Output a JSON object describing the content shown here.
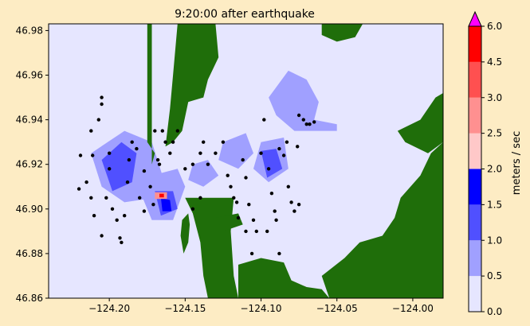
{
  "chart_data": {
    "type": "heatmap",
    "title": "9:20:00 after earthquake",
    "xlabel": "",
    "ylabel": "",
    "xlim": [
      -124.24,
      -123.98
    ],
    "ylim": [
      46.86,
      46.983
    ],
    "x_ticks": [
      -124.2,
      -124.15,
      -124.1,
      -124.05,
      -124.0
    ],
    "x_tick_labels": [
      "−124.20",
      "−124.15",
      "−124.10",
      "−124.05",
      "−124.00"
    ],
    "y_ticks": [
      46.86,
      46.88,
      46.9,
      46.92,
      46.94,
      46.96,
      46.98
    ],
    "y_tick_labels": [
      "46.86",
      "46.88",
      "46.90",
      "46.92",
      "46.94",
      "46.96",
      "46.98"
    ],
    "colorbar": {
      "label": "meters / sec",
      "levels": [
        0.0,
        0.5,
        1.0,
        1.5,
        2.0,
        2.5,
        3.0,
        4.5,
        6.0
      ],
      "level_labels": [
        "0.0",
        "0.5",
        "1.0",
        "1.5",
        "2.0",
        "2.5",
        "3.0",
        "4.5",
        "6.0"
      ],
      "colors": [
        "#e6e6ff",
        "#a0a0ff",
        "#5050ff",
        "#0000ff",
        "#ffc8c8",
        "#ff9090",
        "#ff5050",
        "#ff0000"
      ],
      "extend_max_color": "#ff00ff"
    },
    "land_color": "#1f6e0a",
    "speed_regions": [
      {
        "level": 1,
        "polygon": [
          [
            -124.095,
            46.95
          ],
          [
            -124.082,
            46.962
          ],
          [
            -124.07,
            46.958
          ],
          [
            -124.062,
            46.948
          ],
          [
            -124.065,
            46.94
          ],
          [
            -124.05,
            46.938
          ],
          [
            -124.05,
            46.935
          ],
          [
            -124.078,
            46.935
          ],
          [
            -124.09,
            46.942
          ]
        ]
      },
      {
        "level": 1,
        "polygon": [
          [
            -124.212,
            46.925
          ],
          [
            -124.19,
            46.935
          ],
          [
            -124.172,
            46.93
          ],
          [
            -124.165,
            46.915
          ],
          [
            -124.17,
            46.905
          ],
          [
            -124.19,
            46.903
          ],
          [
            -124.205,
            46.91
          ]
        ]
      },
      {
        "level": 1,
        "polygon": [
          [
            -124.172,
            46.915
          ],
          [
            -124.155,
            46.918
          ],
          [
            -124.15,
            46.91
          ],
          [
            -124.158,
            46.895
          ],
          [
            -124.172,
            46.895
          ],
          [
            -124.178,
            46.905
          ]
        ]
      },
      {
        "level": 1,
        "polygon": [
          [
            -124.1,
            46.93
          ],
          [
            -124.085,
            46.932
          ],
          [
            -124.082,
            46.918
          ],
          [
            -124.095,
            46.912
          ],
          [
            -124.105,
            46.918
          ]
        ]
      },
      {
        "level": 1,
        "polygon": [
          [
            -124.125,
            46.93
          ],
          [
            -124.11,
            46.934
          ],
          [
            -124.105,
            46.925
          ],
          [
            -124.115,
            46.918
          ],
          [
            -124.128,
            46.922
          ]
        ]
      },
      {
        "level": 1,
        "polygon": [
          [
            -124.145,
            46.92
          ],
          [
            -124.135,
            46.922
          ],
          [
            -124.128,
            46.915
          ],
          [
            -124.138,
            46.91
          ],
          [
            -124.148,
            46.913
          ]
        ]
      },
      {
        "level": 2,
        "polygon": [
          [
            -124.205,
            46.922
          ],
          [
            -124.192,
            46.93
          ],
          [
            -124.182,
            46.925
          ],
          [
            -124.185,
            46.912
          ],
          [
            -124.198,
            46.908
          ]
        ]
      },
      {
        "level": 2,
        "polygon": [
          [
            -124.1,
            46.926
          ],
          [
            -124.09,
            46.927
          ],
          [
            -124.086,
            46.918
          ],
          [
            -124.096,
            46.914
          ]
        ]
      },
      {
        "level": 2,
        "polygon": [
          [
            -124.17,
            46.908
          ],
          [
            -124.158,
            46.908
          ],
          [
            -124.155,
            46.9
          ],
          [
            -124.166,
            46.897
          ]
        ]
      },
      {
        "level": 3,
        "polygon": [
          [
            -124.166,
            46.905
          ],
          [
            -124.16,
            46.904
          ],
          [
            -124.159,
            46.899
          ],
          [
            -124.165,
            46.899
          ]
        ]
      },
      {
        "level": 5,
        "polygon": [
          [
            -124.17,
            46.9075
          ],
          [
            -124.162,
            46.9075
          ],
          [
            -124.162,
            46.9045
          ],
          [
            -124.17,
            46.9045
          ]
        ]
      },
      {
        "level": 7,
        "polygon": [
          [
            -124.167,
            46.9068
          ],
          [
            -124.164,
            46.9068
          ],
          [
            -124.164,
            46.9052
          ],
          [
            -124.167,
            46.9052
          ]
        ]
      }
    ],
    "land_regions": [
      {
        "polygon": [
          [
            -124.175,
            46.983
          ],
          [
            -124.172,
            46.983
          ],
          [
            -124.172,
            46.92
          ],
          [
            -124.17,
            46.925
          ],
          [
            -124.175,
            46.93
          ]
        ]
      },
      {
        "polygon": [
          [
            -124.155,
            46.983
          ],
          [
            -124.13,
            46.983
          ],
          [
            -124.128,
            46.968
          ],
          [
            -124.135,
            46.958
          ],
          [
            -124.138,
            46.95
          ],
          [
            -124.148,
            46.948
          ],
          [
            -124.152,
            46.935
          ],
          [
            -124.158,
            46.93
          ],
          [
            -124.163,
            46.928
          ],
          [
            -124.16,
            46.945
          ],
          [
            -124.158,
            46.96
          ]
        ]
      },
      {
        "polygon": [
          [
            -124.06,
            46.983
          ],
          [
            -124.033,
            46.983
          ],
          [
            -124.038,
            46.977
          ],
          [
            -124.05,
            46.975
          ],
          [
            -124.06,
            46.978
          ]
        ]
      },
      {
        "polygon": [
          [
            -124.15,
            46.905
          ],
          [
            -124.118,
            46.905
          ],
          [
            -124.12,
            46.89
          ],
          [
            -124.118,
            46.87
          ],
          [
            -124.115,
            46.86
          ],
          [
            -124.135,
            46.86
          ],
          [
            -124.138,
            46.87
          ],
          [
            -124.14,
            46.885
          ],
          [
            -124.145,
            46.898
          ]
        ]
      },
      {
        "polygon": [
          [
            -124.115,
            46.875
          ],
          [
            -124.1,
            46.878
          ],
          [
            -124.085,
            46.876
          ],
          [
            -124.08,
            46.868
          ],
          [
            -124.07,
            46.865
          ],
          [
            -124.06,
            46.864
          ],
          [
            -124.055,
            46.86
          ],
          [
            -124.115,
            46.86
          ]
        ]
      },
      {
        "polygon": [
          [
            -124.06,
            46.87
          ],
          [
            -124.045,
            46.878
          ],
          [
            -124.035,
            46.885
          ],
          [
            -124.02,
            46.888
          ],
          [
            -124.012,
            46.896
          ],
          [
            -124.008,
            46.905
          ],
          [
            -123.995,
            46.915
          ],
          [
            -123.988,
            46.925
          ],
          [
            -123.98,
            46.93
          ],
          [
            -123.98,
            46.86
          ],
          [
            -124.055,
            46.86
          ]
        ]
      },
      {
        "polygon": [
          [
            -124.01,
            46.935
          ],
          [
            -123.995,
            46.94
          ],
          [
            -123.985,
            46.95
          ],
          [
            -123.98,
            46.952
          ],
          [
            -123.98,
            46.93
          ],
          [
            -123.99,
            46.925
          ],
          [
            -124.005,
            46.93
          ]
        ]
      },
      {
        "polygon": [
          [
            -124.148,
            46.898
          ],
          [
            -124.152,
            46.895
          ],
          [
            -124.153,
            46.888
          ],
          [
            -124.151,
            46.88
          ],
          [
            -124.148,
            46.885
          ],
          [
            -124.147,
            46.893
          ]
        ]
      },
      {
        "polygon": [
          [
            -124.13,
            46.896
          ],
          [
            -124.115,
            46.898
          ],
          [
            -124.112,
            46.893
          ],
          [
            -124.125,
            46.89
          ]
        ]
      }
    ],
    "markers": [
      [
        -124.219,
        46.924
      ],
      [
        -124.212,
        46.935
      ],
      [
        -124.211,
        46.924
      ],
      [
        -124.207,
        46.94
      ],
      [
        -124.205,
        46.95
      ],
      [
        -124.205,
        46.947
      ],
      [
        -124.215,
        46.912
      ],
      [
        -124.22,
        46.909
      ],
      [
        -124.212,
        46.905
      ],
      [
        -124.21,
        46.897
      ],
      [
        -124.205,
        46.888
      ],
      [
        -124.202,
        46.905
      ],
      [
        -124.2,
        46.925
      ],
      [
        -124.2,
        46.918
      ],
      [
        -124.198,
        46.9
      ],
      [
        -124.195,
        46.895
      ],
      [
        -124.193,
        46.887
      ],
      [
        -124.192,
        46.885
      ],
      [
        -124.19,
        46.897
      ],
      [
        -124.188,
        46.912
      ],
      [
        -124.187,
        46.922
      ],
      [
        -124.182,
        46.927
      ],
      [
        -124.18,
        46.905
      ],
      [
        -124.177,
        46.899
      ],
      [
        -124.173,
        46.91
      ],
      [
        -124.171,
        46.902
      ],
      [
        -124.17,
        46.935
      ],
      [
        -124.168,
        46.922
      ],
      [
        -124.167,
        46.92
      ],
      [
        -124.165,
        46.935
      ],
      [
        -124.163,
        46.93
      ],
      [
        -124.16,
        46.925
      ],
      [
        -124.158,
        46.93
      ],
      [
        -124.155,
        46.935
      ],
      [
        -124.15,
        46.918
      ],
      [
        -124.145,
        46.92
      ],
      [
        -124.14,
        46.925
      ],
      [
        -124.138,
        46.93
      ],
      [
        -124.135,
        46.92
      ],
      [
        -124.13,
        46.925
      ],
      [
        -124.125,
        46.93
      ],
      [
        -124.122,
        46.915
      ],
      [
        -124.12,
        46.91
      ],
      [
        -124.118,
        46.905
      ],
      [
        -124.116,
        46.903
      ],
      [
        -124.112,
        46.922
      ],
      [
        -124.11,
        46.914
      ],
      [
        -124.108,
        46.902
      ],
      [
        -124.105,
        46.895
      ],
      [
        -124.103,
        46.89
      ],
      [
        -124.1,
        46.925
      ],
      [
        -124.098,
        46.94
      ],
      [
        -124.095,
        46.918
      ],
      [
        -124.093,
        46.907
      ],
      [
        -124.091,
        46.899
      ],
      [
        -124.09,
        46.895
      ],
      [
        -124.088,
        46.927
      ],
      [
        -124.085,
        46.924
      ],
      [
        -124.082,
        46.91
      ],
      [
        -124.08,
        46.903
      ],
      [
        -124.078,
        46.899
      ],
      [
        -124.076,
        46.928
      ],
      [
        -124.075,
        46.942
      ],
      [
        -124.072,
        46.94
      ],
      [
        -124.07,
        46.938
      ],
      [
        -124.068,
        46.938
      ],
      [
        -124.065,
        46.939
      ],
      [
        -124.115,
        46.896
      ],
      [
        -124.11,
        46.89
      ],
      [
        -124.106,
        46.88
      ],
      [
        -124.096,
        46.89
      ],
      [
        -124.088,
        46.88
      ],
      [
        -124.075,
        46.902
      ],
      [
        -124.083,
        46.93
      ],
      [
        -124.14,
        46.905
      ],
      [
        -124.145,
        46.9
      ],
      [
        -124.177,
        46.917
      ],
      [
        -124.185,
        46.93
      ]
    ],
    "marker_color": "#000000"
  }
}
